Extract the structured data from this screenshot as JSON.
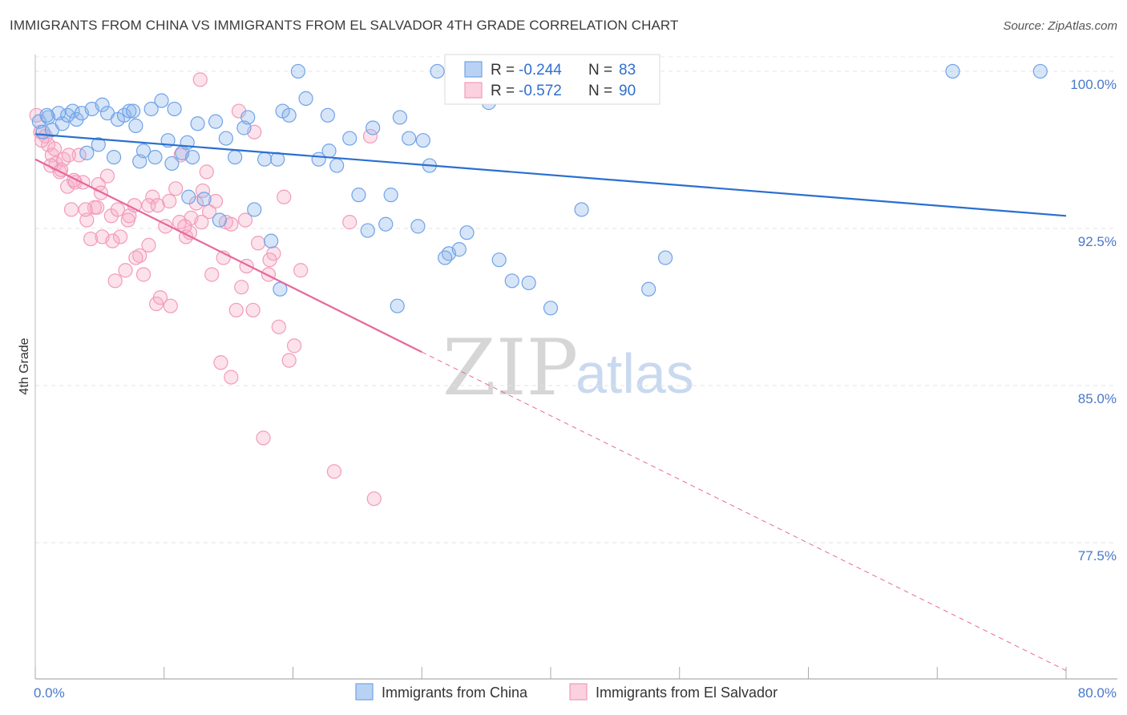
{
  "header": {
    "title": "IMMIGRANTS FROM CHINA VS IMMIGRANTS FROM EL SALVADOR 4TH GRADE CORRELATION CHART",
    "source": "Source: ZipAtlas.com"
  },
  "watermark": {
    "zip": "ZIP",
    "atlas": "atlas"
  },
  "legend": {
    "china": {
      "r_label": "R =",
      "r_value": "-0.244",
      "n_label": "N =",
      "n_value": "83"
    },
    "elsalvador": {
      "r_label": "R =",
      "r_value": "-0.572",
      "n_label": "N =",
      "n_value": "90"
    }
  },
  "bottom_legend": {
    "china": "Immigrants from China",
    "elsalvador": "Immigrants from El Salvador"
  },
  "chart_data": {
    "type": "scatter",
    "title": "IMMIGRANTS FROM CHINA VS IMMIGRANTS FROM EL SALVADOR 4TH GRADE CORRELATION CHART",
    "xlabel": "",
    "ylabel": "4th Grade",
    "xlim": [
      0,
      80
    ],
    "ylim": [
      71.0,
      100.8
    ],
    "x_tick_labels": [
      "0.0%",
      "80.0%"
    ],
    "y_ticks": [
      100.0,
      92.5,
      85.0,
      77.5
    ],
    "y_tick_labels": [
      "100.0%",
      "92.5%",
      "85.0%",
      "77.5%"
    ],
    "grid": true,
    "legend_position": "top-center",
    "colors": {
      "china": "#6fa3e8",
      "china_line": "#2a6fd0",
      "elsalvador": "#f29bb9",
      "elsalvador_line": "#e8669a",
      "tick": "#4a78c8"
    },
    "series": [
      {
        "name": "Immigrants from China",
        "r": -0.244,
        "n": 83,
        "trend": {
          "x": [
            0,
            80
          ],
          "y": [
            97.0,
            93.1
          ]
        },
        "points": [
          [
            0.3,
            97.6
          ],
          [
            0.6,
            97.1
          ],
          [
            1.0,
            97.8
          ],
          [
            1.3,
            97.2
          ],
          [
            1.8,
            98.0
          ],
          [
            2.1,
            97.5
          ],
          [
            2.5,
            97.9
          ],
          [
            2.9,
            98.1
          ],
          [
            3.2,
            97.7
          ],
          [
            3.6,
            98.0
          ],
          [
            4.0,
            96.1
          ],
          [
            4.4,
            98.2
          ],
          [
            4.9,
            96.5
          ],
          [
            5.2,
            98.4
          ],
          [
            5.6,
            98.0
          ],
          [
            6.1,
            95.9
          ],
          [
            6.4,
            97.7
          ],
          [
            6.9,
            97.9
          ],
          [
            7.3,
            98.1
          ],
          [
            7.8,
            97.4
          ],
          [
            8.1,
            95.7
          ],
          [
            8.4,
            96.2
          ],
          [
            9.0,
            98.2
          ],
          [
            9.3,
            95.9
          ],
          [
            9.8,
            98.6
          ],
          [
            10.3,
            96.7
          ],
          [
            10.8,
            98.2
          ],
          [
            11.4,
            96.1
          ],
          [
            11.8,
            96.6
          ],
          [
            12.2,
            95.9
          ],
          [
            12.6,
            97.5
          ],
          [
            13.1,
            93.9
          ],
          [
            14.0,
            97.6
          ],
          [
            14.8,
            96.8
          ],
          [
            15.5,
            95.9
          ],
          [
            16.2,
            97.3
          ],
          [
            17.0,
            93.4
          ],
          [
            17.8,
            95.8
          ],
          [
            18.3,
            91.9
          ],
          [
            19.2,
            98.1
          ],
          [
            19.7,
            97.9
          ],
          [
            20.4,
            100.0
          ],
          [
            21.0,
            98.7
          ],
          [
            22.0,
            95.8
          ],
          [
            22.8,
            96.2
          ],
          [
            23.4,
            95.5
          ],
          [
            24.4,
            96.8
          ],
          [
            25.1,
            94.1
          ],
          [
            25.8,
            92.4
          ],
          [
            26.2,
            97.3
          ],
          [
            27.2,
            92.7
          ],
          [
            27.6,
            94.1
          ],
          [
            28.3,
            97.8
          ],
          [
            29.0,
            96.8
          ],
          [
            29.7,
            92.6
          ],
          [
            30.1,
            96.7
          ],
          [
            30.6,
            95.5
          ],
          [
            31.2,
            100.0
          ],
          [
            32.1,
            91.3
          ],
          [
            32.9,
            91.5
          ],
          [
            33.5,
            92.3
          ],
          [
            35.2,
            98.5
          ],
          [
            37.0,
            90.0
          ],
          [
            38.3,
            89.9
          ],
          [
            40.0,
            88.7
          ],
          [
            42.4,
            93.4
          ],
          [
            43.0,
            100.0
          ],
          [
            47.6,
            89.6
          ],
          [
            48.9,
            91.1
          ],
          [
            18.8,
            95.8
          ],
          [
            22.7,
            97.9
          ],
          [
            14.3,
            92.9
          ],
          [
            7.6,
            98.1
          ],
          [
            11.9,
            94.0
          ],
          [
            19.0,
            89.6
          ],
          [
            28.1,
            88.8
          ],
          [
            31.8,
            91.1
          ],
          [
            36.0,
            91.0
          ],
          [
            71.2,
            100.0
          ],
          [
            78.0,
            100.0
          ],
          [
            0.9,
            97.9
          ],
          [
            16.5,
            97.8
          ],
          [
            10.6,
            95.6
          ]
        ]
      },
      {
        "name": "Immigrants from El Salvador",
        "r": -0.572,
        "n": 90,
        "trend": {
          "x": [
            0,
            30
          ],
          "y": [
            95.8,
            86.6
          ]
        },
        "trend_dashed": {
          "x": [
            30,
            80
          ],
          "y": [
            86.6,
            71.4
          ]
        },
        "points": [
          [
            0.1,
            97.9
          ],
          [
            0.4,
            97.1
          ],
          [
            0.8,
            96.9
          ],
          [
            1.0,
            96.5
          ],
          [
            1.3,
            96.0
          ],
          [
            1.6,
            95.6
          ],
          [
            1.9,
            95.2
          ],
          [
            2.2,
            95.8
          ],
          [
            2.5,
            94.5
          ],
          [
            2.8,
            93.4
          ],
          [
            3.1,
            94.7
          ],
          [
            3.4,
            96.0
          ],
          [
            3.7,
            94.7
          ],
          [
            4.0,
            92.9
          ],
          [
            4.3,
            92.0
          ],
          [
            4.6,
            93.5
          ],
          [
            4.9,
            94.6
          ],
          [
            5.2,
            92.1
          ],
          [
            5.6,
            95.0
          ],
          [
            5.9,
            93.1
          ],
          [
            6.2,
            90.0
          ],
          [
            6.6,
            92.1
          ],
          [
            7.0,
            90.5
          ],
          [
            7.3,
            93.1
          ],
          [
            7.7,
            93.6
          ],
          [
            8.1,
            91.2
          ],
          [
            8.4,
            90.3
          ],
          [
            8.8,
            91.7
          ],
          [
            9.1,
            94.0
          ],
          [
            9.4,
            88.9
          ],
          [
            9.7,
            89.2
          ],
          [
            10.1,
            92.6
          ],
          [
            10.5,
            88.8
          ],
          [
            10.9,
            94.4
          ],
          [
            11.3,
            96.0
          ],
          [
            11.7,
            92.1
          ],
          [
            12.1,
            93.0
          ],
          [
            12.5,
            93.7
          ],
          [
            12.9,
            92.8
          ],
          [
            13.3,
            95.2
          ],
          [
            13.7,
            90.3
          ],
          [
            14.0,
            93.8
          ],
          [
            14.4,
            86.1
          ],
          [
            14.8,
            92.8
          ],
          [
            15.2,
            85.4
          ],
          [
            15.6,
            88.6
          ],
          [
            16.0,
            89.7
          ],
          [
            16.4,
            90.7
          ],
          [
            16.9,
            88.6
          ],
          [
            17.3,
            91.8
          ],
          [
            17.7,
            82.5
          ],
          [
            18.1,
            90.3
          ],
          [
            18.5,
            91.3
          ],
          [
            18.9,
            87.8
          ],
          [
            19.3,
            94.0
          ],
          [
            19.7,
            86.2
          ],
          [
            20.1,
            86.9
          ],
          [
            20.6,
            90.5
          ],
          [
            23.2,
            80.9
          ],
          [
            24.4,
            92.8
          ],
          [
            26.0,
            96.9
          ],
          [
            26.3,
            79.6
          ],
          [
            12.8,
            99.6
          ],
          [
            15.8,
            98.1
          ],
          [
            2.0,
            95.3
          ],
          [
            3.0,
            94.8
          ],
          [
            5.1,
            94.2
          ],
          [
            6.0,
            91.9
          ],
          [
            7.8,
            91.1
          ],
          [
            8.8,
            93.6
          ],
          [
            9.5,
            93.6
          ],
          [
            11.2,
            92.8
          ],
          [
            12.0,
            92.3
          ],
          [
            13.5,
            93.3
          ],
          [
            15.2,
            92.7
          ],
          [
            17.0,
            97.1
          ],
          [
            0.5,
            96.7
          ],
          [
            1.5,
            96.3
          ],
          [
            2.6,
            96.0
          ],
          [
            3.9,
            93.4
          ],
          [
            6.4,
            93.4
          ],
          [
            7.2,
            92.9
          ],
          [
            10.4,
            93.8
          ],
          [
            11.6,
            92.6
          ],
          [
            13.0,
            94.3
          ],
          [
            14.6,
            91.1
          ],
          [
            16.3,
            92.9
          ],
          [
            18.2,
            91.0
          ],
          [
            4.8,
            93.5
          ],
          [
            1.2,
            95.5
          ]
        ]
      }
    ]
  }
}
